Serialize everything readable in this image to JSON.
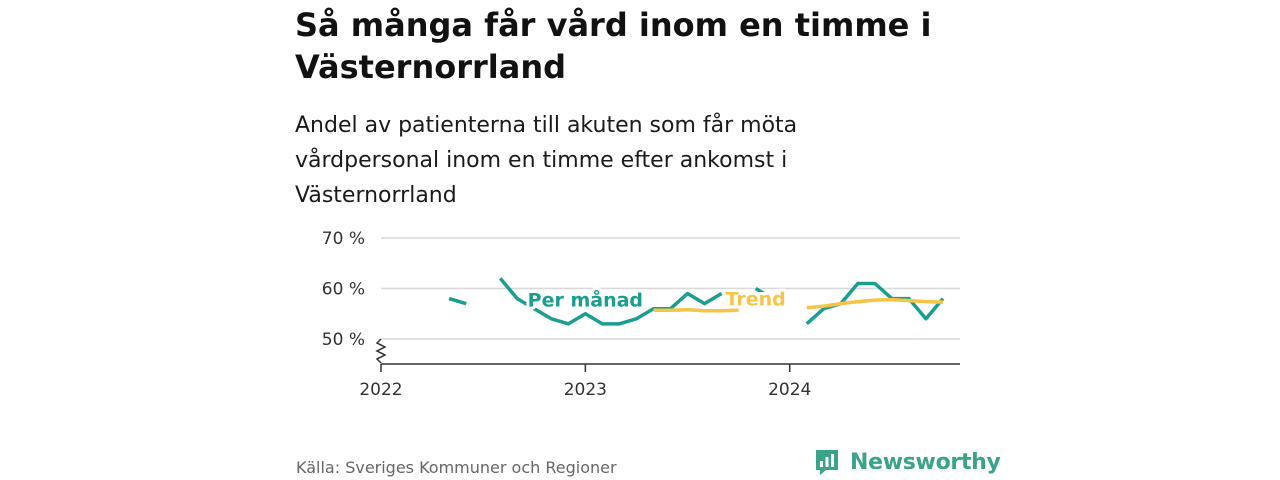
{
  "header": {
    "title": "Så många får vård inom en timme i Västernorrland",
    "subtitle": "Andel av patienterna till akuten som får möta vårdpersonal inom en timme efter ankomst i Västernorrland"
  },
  "chart_data": {
    "type": "line",
    "title": "Så många får vård inom en timme i Västernorrland",
    "subtitle": "Andel av patienterna till akuten som får möta vårdpersonal inom en timme efter ankomst i Västernorrland",
    "xlabel": "",
    "ylabel": "",
    "y_unit": "%",
    "ylim": [
      45,
      70
    ],
    "y_ticks": [
      50,
      60,
      70
    ],
    "y_tick_labels": [
      "50 %",
      "60 %",
      "70 %"
    ],
    "y_axis_broken": true,
    "x_range": [
      "2022-01",
      "2024-11"
    ],
    "x_ticks": [
      "2022-01",
      "2023-01",
      "2024-01"
    ],
    "x_tick_labels": [
      "2022",
      "2023",
      "2024"
    ],
    "grid": "horizontal",
    "legend": "inline labels",
    "series": [
      {
        "name": "Per månad",
        "color": "#1a9e8f",
        "x": [
          "2022-01",
          "2022-02",
          "2022-03",
          "2022-04",
          "2022-05",
          "2022-06",
          "2022-07",
          "2022-08",
          "2022-09",
          "2022-10",
          "2022-11",
          "2022-12",
          "2023-01",
          "2023-02",
          "2023-03",
          "2023-04",
          "2023-05",
          "2023-06",
          "2023-07",
          "2023-08",
          "2023-09",
          "2023-10",
          "2023-11",
          "2023-12",
          "2024-01",
          "2024-02",
          "2024-03",
          "2024-04",
          "2024-05",
          "2024-06",
          "2024-07",
          "2024-08",
          "2024-09",
          "2024-10"
        ],
        "values": [
          null,
          null,
          null,
          null,
          58,
          57,
          null,
          62,
          58,
          56,
          54,
          53,
          55,
          53,
          53,
          54,
          56,
          56,
          59,
          57,
          59,
          null,
          60,
          58,
          null,
          53,
          56,
          57,
          61,
          61,
          58,
          58,
          54,
          58
        ]
      },
      {
        "name": "Trend",
        "color": "#f7c546",
        "x": [
          "2022-01",
          "2022-02",
          "2022-03",
          "2022-04",
          "2022-05",
          "2022-06",
          "2022-07",
          "2022-08",
          "2022-09",
          "2022-10",
          "2022-11",
          "2022-12",
          "2023-01",
          "2023-02",
          "2023-03",
          "2023-04",
          "2023-05",
          "2023-06",
          "2023-07",
          "2023-08",
          "2023-09",
          "2023-10",
          "2023-11",
          "2023-12",
          "2024-01",
          "2024-02",
          "2024-03",
          "2024-04",
          "2024-05",
          "2024-06",
          "2024-07",
          "2024-08",
          "2024-09",
          "2024-10"
        ],
        "values": [
          null,
          null,
          null,
          null,
          null,
          null,
          null,
          null,
          null,
          null,
          null,
          null,
          null,
          null,
          null,
          null,
          55.7,
          55.7,
          55.8,
          55.6,
          55.6,
          55.7,
          null,
          null,
          null,
          56.2,
          56.5,
          57.0,
          57.4,
          57.7,
          57.8,
          57.6,
          57.4,
          57.3
        ]
      }
    ],
    "annotations": [
      {
        "text": "Per månad",
        "series": 0,
        "x": "2023-01",
        "y": 56.4
      },
      {
        "text": "Trend",
        "series": 1,
        "x": "2023-11",
        "y": 56.6
      }
    ]
  },
  "footer": {
    "source": "Källa: Sveriges Kommuner och Regioner",
    "brand_name": "Newsworthy",
    "brand_color": "#3aa38a"
  }
}
